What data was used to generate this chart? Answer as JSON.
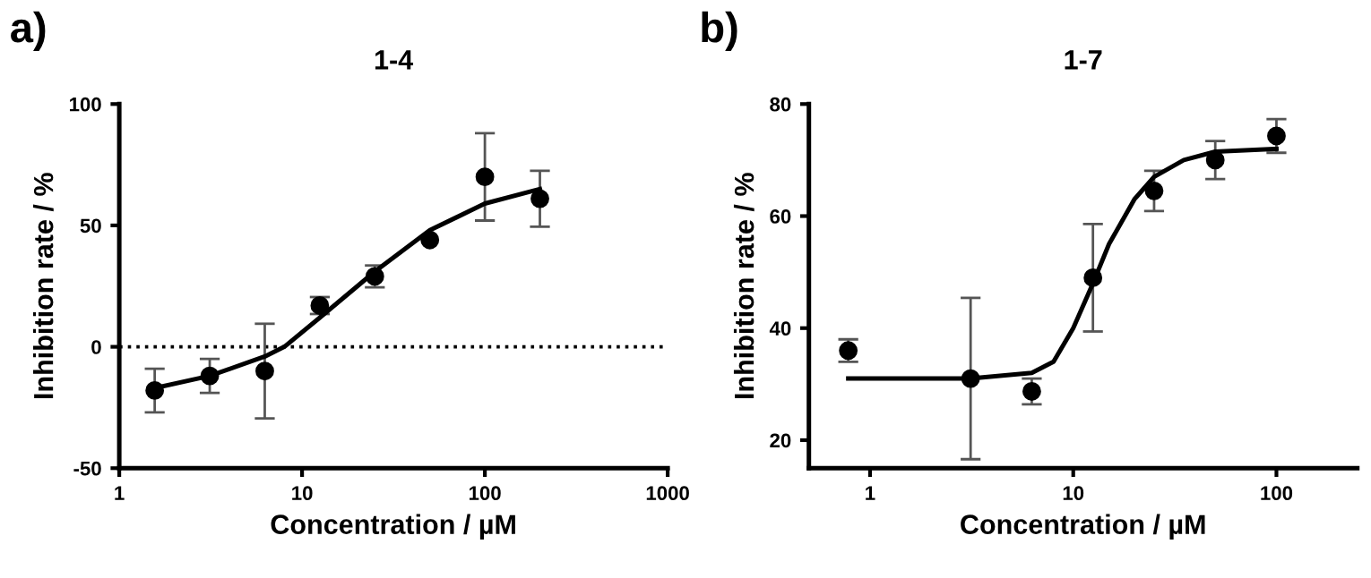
{
  "chart_data": [
    {
      "type": "scatter",
      "title": "1-4",
      "xlabel": "Concentration / µM",
      "ylabel": "Inhibition rate / %",
      "annotations": [
        "a)"
      ],
      "log": "x",
      "xlim": [
        1,
        1000
      ],
      "xticks": [
        1,
        10,
        100,
        1000
      ],
      "ylim": [
        -50,
        100
      ],
      "yticks": [
        -50,
        0,
        50,
        100
      ],
      "grid": false,
      "legend": false,
      "ref_lines": [
        {
          "axis": "y",
          "value": 0,
          "line_style": "dotted",
          "color": "#000000"
        }
      ],
      "series": [
        {
          "color": "#000000",
          "marker": "circle",
          "x": [
            1.5625,
            3.125,
            6.25,
            12.5,
            25,
            50,
            100,
            200
          ],
          "values": [
            -18,
            -12,
            -10,
            17,
            29,
            44,
            70,
            61
          ],
          "errors": [
            9,
            7,
            19.5,
            3.5,
            4.5,
            null,
            18,
            11.5
          ]
        },
        {
          "type": "line",
          "color": "#000000",
          "marker": "none",
          "line_style": "solid",
          "x": [
            1.5625,
            3.125,
            6.25,
            8,
            12.5,
            25,
            50,
            100,
            200
          ],
          "values": [
            -17,
            -12,
            -4,
            0,
            12,
            31,
            48,
            59,
            65
          ]
        }
      ]
    },
    {
      "type": "scatter",
      "title": "1-7",
      "xlabel": "Concentration / µM",
      "ylabel": "Inhibition rate / %",
      "annotations": [
        "b)"
      ],
      "log": "x",
      "xlim": [
        0.5,
        250
      ],
      "xticks": [
        1,
        10,
        100
      ],
      "ylim": [
        15,
        80
      ],
      "yticks": [
        20,
        40,
        60,
        80
      ],
      "grid": false,
      "legend": false,
      "series": [
        {
          "color": "#000000",
          "marker": "circle",
          "x": [
            0.78125,
            3.125,
            6.25,
            12.5,
            25,
            50,
            100
          ],
          "values": [
            36,
            31,
            28.7,
            49,
            64.5,
            70,
            74.3
          ],
          "errors": [
            2,
            14.4,
            2.3,
            9.6,
            3.6,
            3.4,
            3
          ]
        },
        {
          "type": "line",
          "color": "#000000",
          "marker": "none",
          "line_style": "solid",
          "x": [
            0.78125,
            3.125,
            6.25,
            8,
            10,
            12.5,
            15,
            20,
            25,
            35,
            50,
            100
          ],
          "values": [
            31,
            31,
            32,
            34,
            40,
            48,
            55,
            63,
            67,
            70,
            71.5,
            72
          ]
        }
      ]
    }
  ]
}
